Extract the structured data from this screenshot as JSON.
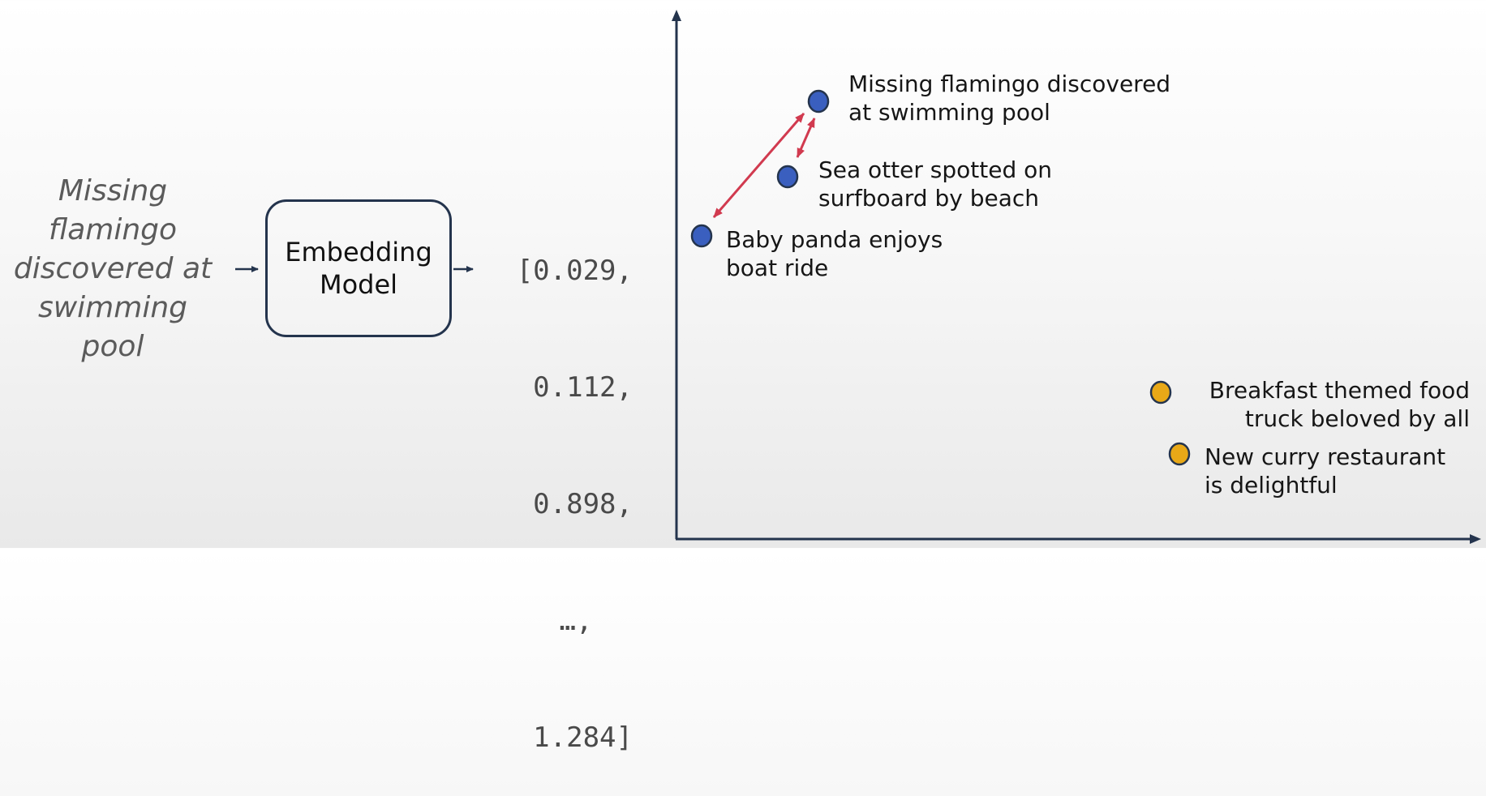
{
  "input": {
    "lines": [
      "Missing",
      "flamingo",
      "discovered at",
      "swimming",
      "pool"
    ]
  },
  "model": {
    "lines": [
      "Embedding",
      "Model"
    ]
  },
  "vector": {
    "lines": [
      "[0.029,",
      "0.112,",
      "0.898,",
      "…,",
      "1.284]"
    ]
  },
  "plot": {
    "point_colors": {
      "blue": "#3a5fbf",
      "yellow": "#e8a817",
      "outline": "#24344d",
      "arrow": "#d13a4f"
    },
    "points": [
      {
        "id": "flamingo",
        "lines": [
          "Missing flamingo discovered",
          "at swimming pool"
        ],
        "color": "blue"
      },
      {
        "id": "otter",
        "lines": [
          "Sea otter spotted on",
          "surfboard by beach"
        ],
        "color": "blue"
      },
      {
        "id": "panda",
        "lines": [
          "Baby panda enjoys",
          "boat ride"
        ],
        "color": "blue"
      },
      {
        "id": "breakfast",
        "lines": [
          "Breakfast themed food",
          "truck beloved by all"
        ],
        "color": "yellow"
      },
      {
        "id": "curry",
        "lines": [
          "New curry restaurant",
          "is delightful"
        ],
        "color": "yellow"
      }
    ]
  }
}
